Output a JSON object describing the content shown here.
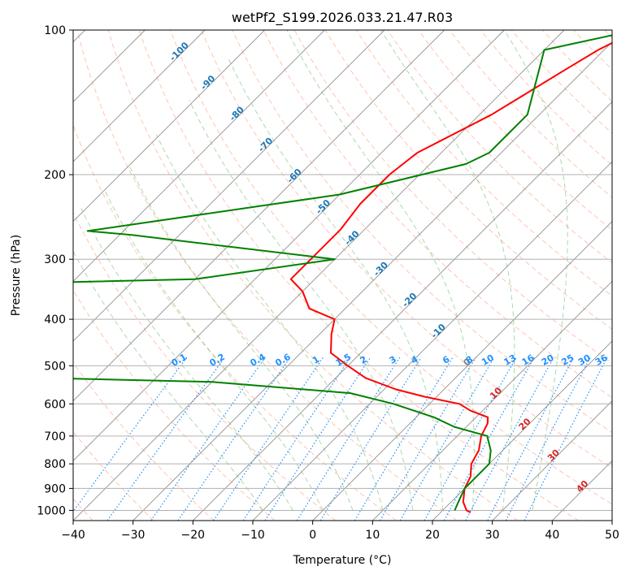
{
  "chart_data": {
    "type": "line",
    "title": "wetPf2_S199.2026.033.21.47.R03",
    "xlabel": "Temperature (°C)",
    "ylabel": "Pressure (hPa)",
    "xlim": [
      -40,
      50
    ],
    "ylim": [
      1050,
      100
    ],
    "y_scale": "log",
    "grid": true,
    "x_ticks": [
      "−40",
      "−30",
      "−20",
      "−10",
      "0",
      "10",
      "20",
      "30",
      "40",
      "50"
    ],
    "y_ticks": [
      "100",
      "200",
      "300",
      "400",
      "500",
      "600",
      "700",
      "800",
      "900",
      "1000"
    ],
    "series": [
      {
        "color": "#ff0000",
        "points": [
          [
            -27.7,
            100
          ],
          [
            -31,
            110
          ],
          [
            -33,
            120
          ],
          [
            -38,
            150
          ],
          [
            -44,
            180
          ],
          [
            -45,
            200
          ],
          [
            -45,
            230
          ],
          [
            -44,
            260
          ],
          [
            -44,
            300
          ],
          [
            -44,
            330
          ],
          [
            -40,
            350
          ],
          [
            -36,
            380
          ],
          [
            -30,
            400
          ],
          [
            -28,
            430
          ],
          [
            -25,
            470
          ],
          [
            -20,
            500
          ],
          [
            -15,
            530
          ],
          [
            -8,
            560
          ],
          [
            -2,
            580
          ],
          [
            5,
            600
          ],
          [
            8,
            620
          ],
          [
            12,
            640
          ],
          [
            13,
            660
          ],
          [
            14,
            700
          ],
          [
            16,
            750
          ],
          [
            17,
            800
          ],
          [
            19,
            850
          ],
          [
            20,
            900
          ],
          [
            22,
            960
          ],
          [
            24,
            1000
          ],
          [
            25,
            1010
          ]
        ]
      },
      {
        "color": "#008000",
        "points": [
          [
            -28,
            100
          ],
          [
            -40,
            110
          ],
          [
            -32,
            150
          ],
          [
            -32,
            180
          ],
          [
            -34,
            190
          ],
          [
            -50,
            220
          ],
          [
            -86,
            262
          ],
          [
            -78,
            267
          ],
          [
            -40,
            300
          ],
          [
            -60,
            330
          ],
          [
            -103,
            340
          ],
          [
            -105,
            355
          ],
          [
            -95,
            365
          ],
          [
            -105,
            373
          ],
          [
            -92,
            380
          ],
          [
            -85,
            390
          ],
          [
            -98,
            410
          ],
          [
            -110,
            420
          ],
          [
            -150,
            425
          ],
          [
            -150,
            480
          ],
          [
            -105,
            500
          ],
          [
            -98,
            520
          ],
          [
            -40,
            540
          ],
          [
            -15,
            570
          ],
          [
            -6,
            600
          ],
          [
            3,
            640
          ],
          [
            8,
            670
          ],
          [
            15,
            700
          ],
          [
            18,
            750
          ],
          [
            20,
            800
          ],
          [
            20,
            850
          ],
          [
            20,
            900
          ],
          [
            21,
            950
          ],
          [
            22,
            1000
          ]
        ]
      }
    ],
    "isotherm_labels": [
      "-100",
      "-90",
      "-80",
      "-70",
      "-60",
      "-50",
      "-40",
      "-30",
      "-20",
      "-10",
      "0",
      "10",
      "20",
      "30",
      "40"
    ],
    "mixing_ratio_labels": [
      "0.1",
      "0.2",
      "0.4",
      "0.6",
      "1",
      "1.5",
      "2",
      "3",
      "4",
      "6",
      "8",
      "10",
      "13",
      "16",
      "20",
      "25",
      "30",
      "36"
    ],
    "colors": {
      "temperature": "#ff0000",
      "dewpoint": "#008000",
      "isotherm_label_cold": "#1f77b4",
      "isotherm_zero": "#808080",
      "isotherm_label_warm": "#d62728",
      "mixing_ratio": "#1e90ff",
      "dry_adiabat": "#ff7f50",
      "moist_adiabat": "#2ca02c",
      "grid": "#b0b0b0",
      "isotherm_line": "#909090"
    }
  }
}
